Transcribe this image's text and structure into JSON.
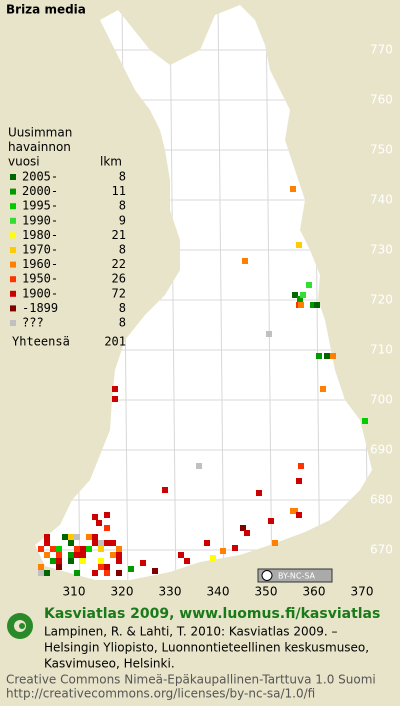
{
  "title": "Briza media",
  "northing_labels": [
    "770",
    "760",
    "750",
    "740",
    "730",
    "720",
    "710",
    "700",
    "690",
    "680",
    "670"
  ],
  "easting_labels": [
    "310",
    "320",
    "330",
    "340",
    "350",
    "360",
    "370"
  ],
  "legend": {
    "heading": [
      "Uusimman",
      "havainnon",
      "vuosi"
    ],
    "count_heading": "lkm",
    "items": [
      {
        "label": "2005-",
        "count": 8,
        "color": "#006600"
      },
      {
        "label": "2000-",
        "count": 11,
        "color": "#009900"
      },
      {
        "label": "1995-",
        "count": 8,
        "color": "#00cc00"
      },
      {
        "label": "1990-",
        "count": 9,
        "color": "#33dd33"
      },
      {
        "label": "1980-",
        "count": 21,
        "color": "#ffff00"
      },
      {
        "label": "1970-",
        "count": 8,
        "color": "#ffcc00"
      },
      {
        "label": "1960-",
        "count": 22,
        "color": "#ff8000"
      },
      {
        "label": "1950-",
        "count": 26,
        "color": "#ff3300"
      },
      {
        "label": "1900-",
        "count": 72,
        "color": "#cc0000"
      },
      {
        "label": "-1899",
        "count": 8,
        "color": "#800000"
      },
      {
        "label": "???",
        "count": 8,
        "color": "#c0c0c0"
      }
    ],
    "total_label": "Yhteensä",
    "total": 201
  },
  "badge": "BY-NC-SA",
  "footer": {
    "site": "Kasviatlas 2009, www.luomus.fi/kasviatlas",
    "citation": [
      "Lampinen, R. & Lahti, T. 2010: Kasviatlas 2009. –",
      "Helsingin Yliopisto, Luonnontieteellinen keskusmuseo,",
      "Kasvimuseo, Helsinki."
    ],
    "license": [
      "Creative Commons Nimeä-Epäkaupallinen-Tarttuva 1.0 Suomi",
      "http://creativecommons.org/licenses/by-nc-sa/1.0/fi"
    ]
  }
}
